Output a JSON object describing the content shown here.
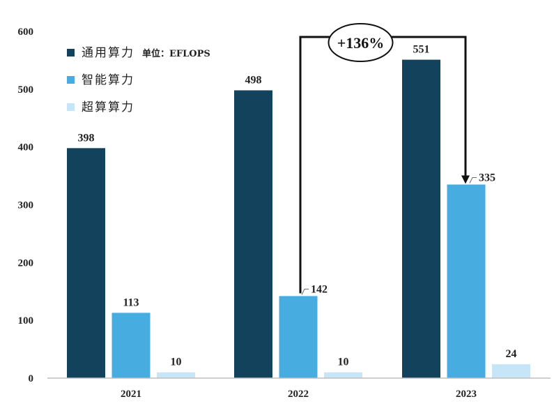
{
  "chart_data": {
    "type": "bar",
    "categories": [
      "2021",
      "2022",
      "2023"
    ],
    "series": [
      {
        "name": "通用算力",
        "values": [
          398,
          498,
          551
        ],
        "color": "#13425c"
      },
      {
        "name": "智能算力",
        "values": [
          113,
          142,
          335
        ],
        "color": "#47ade0"
      },
      {
        "name": "超算算力",
        "values": [
          10,
          10,
          24
        ],
        "color": "#c6e6f7"
      }
    ],
    "ylim": [
      0,
      600
    ],
    "yticks": [
      0,
      100,
      200,
      300,
      400,
      500,
      600
    ],
    "unit": "单位：EFLOPS",
    "legend_position": "top-left",
    "grid": false,
    "annotation": {
      "text": "+136%",
      "from_series": 1,
      "from_category": 1,
      "to_series": 1,
      "to_category": 2
    }
  }
}
